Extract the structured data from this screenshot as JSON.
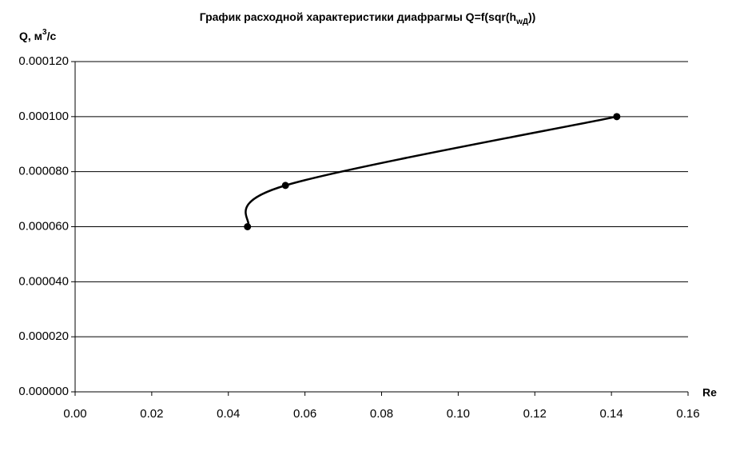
{
  "chart_data": {
    "type": "line",
    "title": [
      "График расходной характеристики диафрагмы Q=f(sqr(h",
      "wД",
      "))"
    ],
    "y_label": [
      "Q, м",
      "3",
      "/с"
    ],
    "x_label": "Re",
    "x": [
      0.045,
      0.0549,
      0.1414
    ],
    "values": [
      6e-05,
      7.5e-05,
      0.0001
    ],
    "color": "#000000",
    "smooth": true,
    "markers": true,
    "xlim": [
      0,
      0.16
    ],
    "xticks": [
      {
        "value": 0,
        "label": "0.00"
      },
      {
        "value": 0.02,
        "label": "0.02"
      },
      {
        "value": 0.04,
        "label": "0.04"
      },
      {
        "value": 0.06,
        "label": "0.06"
      },
      {
        "value": 0.08,
        "label": "0.08"
      },
      {
        "value": 0.1,
        "label": "0.10"
      },
      {
        "value": 0.12,
        "label": "0.12"
      },
      {
        "value": 0.14,
        "label": "0.14"
      },
      {
        "value": 0.16,
        "label": "0.16"
      }
    ],
    "ylim": [
      0,
      0.00012
    ],
    "yticks": [
      {
        "value": 0,
        "label": "0.000000"
      },
      {
        "value": 2e-05,
        "label": "0.000020"
      },
      {
        "value": 4e-05,
        "label": "0.000040"
      },
      {
        "value": 6e-05,
        "label": "0.000060"
      },
      {
        "value": 8e-05,
        "label": "0.000080"
      },
      {
        "value": 0.0001,
        "label": "0.000100"
      },
      {
        "value": 0.00012,
        "label": "0.000120"
      }
    ],
    "grid": true
  }
}
